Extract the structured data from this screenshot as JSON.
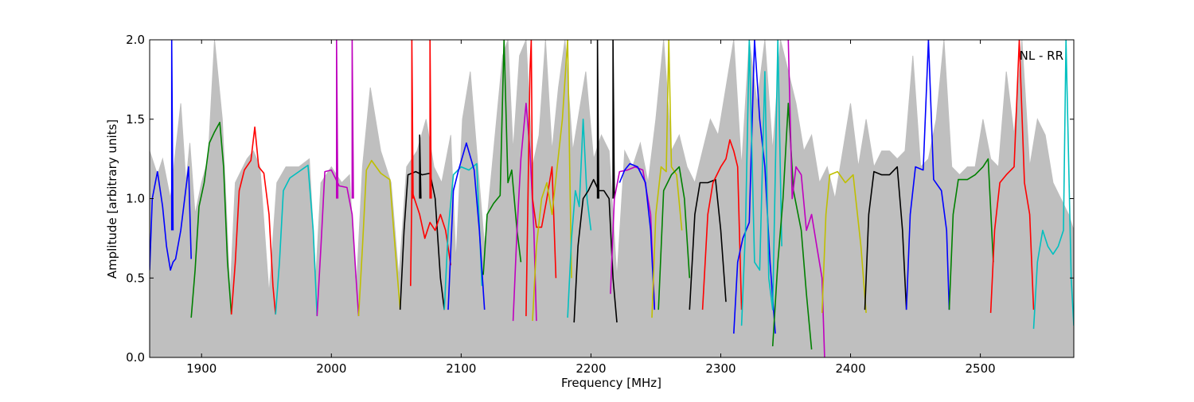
{
  "chart_data": {
    "type": "line",
    "title": "",
    "annotation": "NL - RR",
    "xlabel": "Frequency [MHz]",
    "ylabel": "Amplitude [arbitrary units]",
    "xlim": [
      1860,
      2572
    ],
    "ylim": [
      0.0,
      2.0
    ],
    "xticks": [
      1900,
      2000,
      2100,
      2200,
      2300,
      2400,
      2500
    ],
    "yticks": [
      0.0,
      0.5,
      1.0,
      1.5,
      2.0
    ],
    "xtick_labels": [
      "1900",
      "2000",
      "2100",
      "2200",
      "2300",
      "2400",
      "2500"
    ],
    "ytick_labels": [
      "0.0",
      "0.5",
      "1.0",
      "1.5",
      "2.0"
    ],
    "grid": false,
    "colors": {
      "background_envelope": "#bfbfbf",
      "blue": "#0000ff",
      "green": "#008000",
      "red": "#ff0000",
      "cyan": "#00bfbf",
      "magenta": "#bf00bf",
      "olive": "#bfbf00",
      "black": "#000000"
    },
    "envelope": {
      "color": "#bfbfbf",
      "x": [
        1860,
        1866,
        1870,
        1876,
        1880,
        1884,
        1888,
        1891,
        1895,
        1900,
        1905,
        1910,
        1916,
        1922,
        1926,
        1935,
        1940,
        1945,
        1952,
        1958,
        1965,
        1975,
        1983,
        1988,
        1992,
        2000,
        2008,
        2014,
        2019,
        2024,
        2030,
        2038,
        2046,
        2052,
        2058,
        2066,
        2073,
        2079,
        2085,
        2092,
        2096,
        2101,
        2107,
        2113,
        2118,
        2125,
        2132,
        2136,
        2140,
        2145,
        2150,
        2155,
        2160,
        2165,
        2170,
        2175,
        2180,
        2186,
        2190,
        2196,
        2202,
        2208,
        2214,
        2220,
        2226,
        2232,
        2238,
        2244,
        2250,
        2256,
        2262,
        2268,
        2274,
        2280,
        2286,
        2292,
        2298,
        2304,
        2310,
        2316,
        2322,
        2328,
        2334,
        2340,
        2346,
        2352,
        2358,
        2364,
        2370,
        2376,
        2382,
        2388,
        2394,
        2400,
        2406,
        2412,
        2418,
        2424,
        2430,
        2436,
        2442,
        2448,
        2454,
        2460,
        2466,
        2472,
        2478,
        2484,
        2490,
        2496,
        2502,
        2508,
        2514,
        2520,
        2526,
        2532,
        2538,
        2544,
        2550,
        2556,
        2562,
        2568,
        2572
      ],
      "y": [
        1.3,
        1.15,
        1.25,
        1.0,
        1.3,
        1.6,
        1.1,
        1.35,
        0.9,
        1.1,
        1.25,
        2.0,
        1.5,
        0.4,
        1.1,
        1.25,
        1.3,
        1.2,
        0.4,
        1.1,
        1.2,
        1.2,
        1.25,
        0.5,
        1.1,
        1.2,
        1.1,
        1.15,
        0.4,
        1.2,
        1.7,
        1.3,
        1.1,
        0.5,
        1.2,
        1.3,
        1.5,
        1.2,
        1.1,
        1.4,
        0.6,
        1.5,
        1.8,
        1.2,
        0.7,
        1.3,
        1.9,
        2.0,
        1.3,
        1.9,
        2.0,
        1.2,
        1.4,
        2.0,
        1.3,
        1.7,
        2.0,
        1.3,
        1.5,
        1.8,
        1.25,
        1.4,
        1.3,
        0.5,
        1.3,
        1.2,
        1.35,
        1.1,
        1.5,
        2.0,
        1.3,
        1.4,
        1.2,
        1.1,
        1.3,
        1.5,
        1.4,
        1.7,
        2.0,
        1.2,
        2.0,
        1.6,
        2.0,
        1.3,
        2.0,
        1.8,
        1.6,
        1.3,
        1.4,
        1.1,
        1.2,
        1.0,
        1.3,
        1.6,
        1.2,
        1.5,
        1.2,
        1.3,
        1.3,
        1.25,
        1.3,
        1.9,
        1.2,
        1.25,
        1.5,
        2.0,
        1.2,
        1.15,
        1.2,
        1.2,
        1.5,
        1.25,
        1.2,
        1.8,
        1.4,
        2.0,
        1.2,
        1.5,
        1.4,
        1.1,
        1.0,
        0.9,
        0.8
      ]
    },
    "series": [
      {
        "color": "#0000ff",
        "x": [
          1860,
          1862,
          1866,
          1870,
          1873,
          1876,
          1878,
          1880,
          1884,
          1887,
          1890,
          1892
        ],
        "y": [
          0.55,
          1.0,
          1.17,
          0.95,
          0.7,
          0.55,
          0.6,
          0.62,
          0.8,
          1.0,
          1.2,
          0.62
        ]
      },
      {
        "color": "#0000ff",
        "x": [
          1877,
          1877,
          1878
        ],
        "y": [
          0.8,
          2.0,
          0.8
        ]
      },
      {
        "color": "#008000",
        "x": [
          1892,
          1895,
          1898,
          1902,
          1906,
          1910,
          1914,
          1917,
          1920,
          1923
        ],
        "y": [
          0.25,
          0.55,
          0.95,
          1.1,
          1.35,
          1.42,
          1.48,
          1.2,
          0.6,
          0.27
        ]
      },
      {
        "color": "#ff0000",
        "x": [
          1923,
          1926,
          1929,
          1933,
          1938,
          1941,
          1944,
          1948,
          1952,
          1955,
          1957
        ],
        "y": [
          0.27,
          0.6,
          1.05,
          1.18,
          1.24,
          1.45,
          1.2,
          1.16,
          0.9,
          0.45,
          0.27
        ]
      },
      {
        "color": "#00bfbf",
        "x": [
          1957,
          1960,
          1963,
          1968,
          1975,
          1982,
          1986,
          1989
        ],
        "y": [
          0.27,
          0.6,
          1.05,
          1.13,
          1.17,
          1.21,
          0.8,
          0.26
        ]
      },
      {
        "color": "#bf00bf",
        "x": [
          1989,
          1992,
          1995,
          2000,
          2006,
          2012,
          2016,
          2019,
          2021
        ],
        "y": [
          0.26,
          0.7,
          1.17,
          1.18,
          1.08,
          1.07,
          0.9,
          0.5,
          0.26
        ]
      },
      {
        "color": "#bf00bf",
        "x": [
          2004,
          2004,
          2005
        ],
        "y": [
          1.0,
          2.0,
          1.0
        ]
      },
      {
        "color": "#bf00bf",
        "x": [
          2016,
          2016,
          2017
        ],
        "y": [
          1.0,
          2.0,
          1.0
        ]
      },
      {
        "color": "#bfbf00",
        "x": [
          2021,
          2024,
          2027,
          2031,
          2038,
          2045,
          2049,
          2053
        ],
        "y": [
          0.26,
          0.7,
          1.18,
          1.24,
          1.16,
          1.12,
          0.7,
          0.3
        ]
      },
      {
        "color": "#000000",
        "x": [
          2053,
          2056,
          2059,
          2065,
          2070,
          2076,
          2080,
          2084,
          2087
        ],
        "y": [
          0.3,
          0.8,
          1.15,
          1.17,
          1.15,
          1.16,
          1.0,
          0.5,
          0.3
        ]
      },
      {
        "color": "#000000",
        "x": [
          2068,
          2068,
          2069
        ],
        "y": [
          1.0,
          1.4,
          1.0
        ]
      },
      {
        "color": "#ff0000",
        "x": [
          2061,
          2062,
          2064,
          2068,
          2072,
          2076,
          2080,
          2084,
          2088,
          2092
        ],
        "y": [
          0.45,
          1.05,
          1.0,
          0.9,
          0.75,
          0.85,
          0.8,
          0.9,
          0.8,
          0.58
        ]
      },
      {
        "color": "#ff0000",
        "x": [
          2062,
          2062,
          2063
        ],
        "y": [
          1.0,
          2.0,
          1.0
        ]
      },
      {
        "color": "#ff0000",
        "x": [
          2076,
          2076,
          2077
        ],
        "y": [
          1.0,
          2.0,
          1.0
        ]
      },
      {
        "color": "#00bfbf",
        "x": [
          2087,
          2090,
          2094,
          2100,
          2106,
          2112,
          2116
        ],
        "y": [
          0.3,
          0.8,
          1.15,
          1.2,
          1.18,
          1.22,
          0.45
        ]
      },
      {
        "color": "#0000ff",
        "x": [
          2090,
          2094,
          2098,
          2104,
          2110,
          2114,
          2118
        ],
        "y": [
          0.3,
          1.05,
          1.18,
          1.35,
          1.18,
          0.8,
          0.3
        ]
      },
      {
        "color": "#008000",
        "x": [
          2117,
          2120,
          2125,
          2130,
          2133,
          2136,
          2139,
          2143,
          2146
        ],
        "y": [
          0.52,
          0.9,
          0.97,
          1.02,
          2.0,
          1.1,
          1.18,
          0.8,
          0.6
        ]
      },
      {
        "color": "#bf00bf",
        "x": [
          2140,
          2143,
          2146,
          2150,
          2153,
          2156,
          2158
        ],
        "y": [
          0.23,
          0.8,
          1.25,
          1.6,
          1.3,
          0.8,
          0.23
        ]
      },
      {
        "color": "#ff0000",
        "x": [
          2150,
          2153,
          2154,
          2155,
          2158,
          2162,
          2166,
          2170,
          2173
        ],
        "y": [
          0.26,
          1.8,
          2.0,
          1.0,
          0.82,
          0.82,
          1.0,
          1.2,
          0.5
        ]
      },
      {
        "color": "#bfbf00",
        "x": [
          2155,
          2158,
          2162,
          2166,
          2170,
          2174,
          2178,
          2182,
          2185
        ],
        "y": [
          0.23,
          0.7,
          1.0,
          1.1,
          0.9,
          1.2,
          1.5,
          2.0,
          0.5
        ]
      },
      {
        "color": "#00bfbf",
        "x": [
          2182,
          2185,
          2188,
          2191,
          2194,
          2197,
          2200
        ],
        "y": [
          0.25,
          0.75,
          1.05,
          0.95,
          1.5,
          1.0,
          0.8
        ]
      },
      {
        "color": "#000000",
        "x": [
          2187,
          2190,
          2194,
          2198,
          2202,
          2206,
          2210,
          2214,
          2217,
          2220
        ],
        "y": [
          0.22,
          0.7,
          1.0,
          1.05,
          1.12,
          1.05,
          1.05,
          1.0,
          0.5,
          0.22
        ]
      },
      {
        "color": "#000000",
        "x": [
          2205,
          2205,
          2206
        ],
        "y": [
          1.0,
          2.0,
          1.0
        ]
      },
      {
        "color": "#000000",
        "x": [
          2217,
          2217,
          2218
        ],
        "y": [
          1.0,
          2.0,
          1.0
        ]
      },
      {
        "color": "#bf00bf",
        "x": [
          2215,
          2218,
          2222,
          2228,
          2234,
          2240,
          2246,
          2249
        ],
        "y": [
          0.4,
          1.0,
          1.17,
          1.18,
          1.2,
          1.18,
          0.9,
          0.3
        ]
      },
      {
        "color": "#0000ff",
        "x": [
          2222,
          2226,
          2230,
          2236,
          2242,
          2246,
          2249
        ],
        "y": [
          1.1,
          1.18,
          1.22,
          1.2,
          1.1,
          0.8,
          0.3
        ]
      },
      {
        "color": "#bfbf00",
        "x": [
          2247,
          2250,
          2254,
          2258,
          2260,
          2262,
          2266,
          2270
        ],
        "y": [
          0.25,
          0.9,
          1.2,
          1.17,
          2.0,
          1.2,
          1.15,
          0.8
        ]
      },
      {
        "color": "#008000",
        "x": [
          2252,
          2256,
          2262,
          2268,
          2272,
          2276
        ],
        "y": [
          0.3,
          1.05,
          1.15,
          1.2,
          1.0,
          0.5
        ]
      },
      {
        "color": "#000000",
        "x": [
          2276,
          2280,
          2284,
          2290,
          2296,
          2300,
          2304
        ],
        "y": [
          0.3,
          0.9,
          1.1,
          1.1,
          1.12,
          0.8,
          0.35
        ]
      },
      {
        "color": "#ff0000",
        "x": [
          2286,
          2290,
          2294,
          2300,
          2304,
          2307,
          2310,
          2313,
          2316
        ],
        "y": [
          0.3,
          0.9,
          1.1,
          1.2,
          1.25,
          1.37,
          1.3,
          1.2,
          0.3
        ]
      },
      {
        "color": "#0000ff",
        "x": [
          2310,
          2313,
          2317,
          2322,
          2326,
          2330,
          2334,
          2338,
          2342
        ],
        "y": [
          0.15,
          0.6,
          0.75,
          0.85,
          2.0,
          1.5,
          1.2,
          0.6,
          0.15
        ]
      },
      {
        "color": "#00bfbf",
        "x": [
          2316,
          2319,
          2322,
          2326,
          2330,
          2334,
          2337,
          2340,
          2344,
          2347
        ],
        "y": [
          0.2,
          0.8,
          2.0,
          0.6,
          0.55,
          1.8,
          0.5,
          0.3,
          2.0,
          0.7
        ]
      },
      {
        "color": "#008000",
        "x": [
          2340,
          2344,
          2348,
          2352,
          2356,
          2362,
          2366,
          2370
        ],
        "y": [
          0.07,
          0.6,
          1.0,
          1.6,
          1.05,
          0.8,
          0.4,
          0.05
        ]
      },
      {
        "color": "#bf00bf",
        "x": [
          2352,
          2355,
          2358,
          2362,
          2366,
          2370,
          2374,
          2378,
          2380
        ],
        "y": [
          2.0,
          1.0,
          1.2,
          1.15,
          0.8,
          0.9,
          0.7,
          0.5,
          0.0
        ]
      },
      {
        "color": "#bfbf00",
        "x": [
          2378,
          2381,
          2384,
          2390,
          2396,
          2402,
          2408,
          2412
        ],
        "y": [
          0.28,
          0.9,
          1.15,
          1.17,
          1.1,
          1.15,
          0.7,
          0.28
        ]
      },
      {
        "color": "#000000",
        "x": [
          2411,
          2414,
          2418,
          2424,
          2430,
          2436,
          2440,
          2443
        ],
        "y": [
          0.3,
          0.9,
          1.17,
          1.15,
          1.15,
          1.2,
          0.8,
          0.3
        ]
      },
      {
        "color": "#0000ff",
        "x": [
          2443,
          2446,
          2450,
          2456,
          2460,
          2464,
          2470,
          2474,
          2476
        ],
        "y": [
          0.3,
          0.9,
          1.2,
          1.18,
          2.0,
          1.12,
          1.05,
          0.8,
          0.3
        ]
      },
      {
        "color": "#008000",
        "x": [
          2476,
          2479,
          2483,
          2490,
          2496,
          2502,
          2506,
          2510
        ],
        "y": [
          0.3,
          0.9,
          1.12,
          1.12,
          1.15,
          1.2,
          1.25,
          0.6
        ]
      },
      {
        "color": "#ff0000",
        "x": [
          2508,
          2511,
          2515,
          2520,
          2526,
          2530,
          2534,
          2538,
          2541
        ],
        "y": [
          0.28,
          0.8,
          1.1,
          1.15,
          1.2,
          2.0,
          1.1,
          0.9,
          0.3
        ]
      },
      {
        "color": "#00bfbf",
        "x": [
          2541,
          2544,
          2548,
          2552,
          2556,
          2560,
          2564,
          2566,
          2570,
          2572
        ],
        "y": [
          0.18,
          0.6,
          0.8,
          0.7,
          0.65,
          0.7,
          0.8,
          2.0,
          0.5,
          0.2
        ]
      }
    ]
  }
}
